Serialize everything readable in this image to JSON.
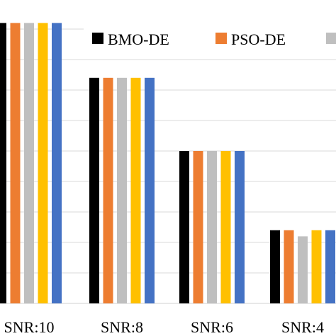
{
  "chart_data": {
    "type": "bar",
    "categories": [
      "SNR:10",
      "SNR:8",
      "SNR:6",
      "SNR:4"
    ],
    "series": [
      {
        "name": "BMO-DE",
        "color": "#000000",
        "values": [
          0.92,
          0.74,
          0.5,
          0.24
        ]
      },
      {
        "name": "PSO-DE",
        "color": "#ED7D31",
        "values": [
          0.92,
          0.74,
          0.5,
          0.24
        ]
      },
      {
        "name": "",
        "color": "#BFBFBF",
        "values": [
          0.92,
          0.74,
          0.5,
          0.22
        ]
      },
      {
        "name": "",
        "color": "#FFC000",
        "values": [
          0.92,
          0.74,
          0.5,
          0.24
        ]
      },
      {
        "name": "",
        "color": "#4472C4",
        "values": [
          0.92,
          0.74,
          0.5,
          0.24
        ]
      }
    ],
    "ylim": [
      0,
      1
    ],
    "grid": true,
    "legend_position": "top-right"
  }
}
